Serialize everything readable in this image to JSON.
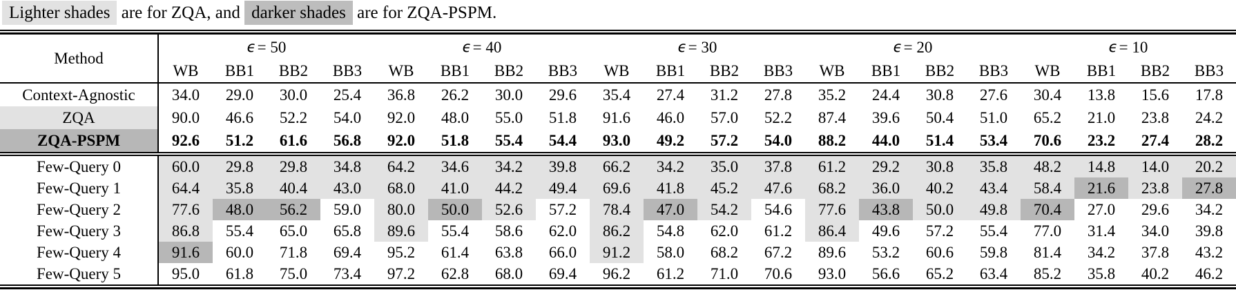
{
  "colors": {
    "light_shade": "#e2e2e2",
    "dark_shade": "#b7b7b7",
    "caption_light": "#e2e2e2",
    "caption_dark": "#bdbdbd"
  },
  "caption": {
    "highlight_light_text": "Lighter shades",
    "middle_text": " are for ZQA, and ",
    "highlight_dark_text": "darker shades",
    "end_text": " are for ZQA-PSPM."
  },
  "table": {
    "method_header": "Method",
    "groups": [
      {
        "symbol": "ϵ",
        "label": "= 50"
      },
      {
        "symbol": "ϵ",
        "label": "= 40"
      },
      {
        "symbol": "ϵ",
        "label": "= 30"
      },
      {
        "symbol": "ϵ",
        "label": "= 20"
      },
      {
        "symbol": "ϵ",
        "label": "= 10"
      }
    ],
    "subheader": [
      "WB",
      "BB1",
      "BB2",
      "BB3"
    ],
    "sections": [
      {
        "rows": [
          {
            "method": "Context-Agnostic",
            "method_shade": "N",
            "bold": false,
            "values": [
              "34.0",
              "29.0",
              "30.0",
              "25.4",
              "36.8",
              "26.2",
              "30.0",
              "29.6",
              "35.4",
              "27.4",
              "31.2",
              "27.8",
              "35.2",
              "24.4",
              "30.8",
              "27.6",
              "30.4",
              "13.8",
              "15.6",
              "17.8"
            ],
            "shades": [
              "N",
              "N",
              "N",
              "N",
              "N",
              "N",
              "N",
              "N",
              "N",
              "N",
              "N",
              "N",
              "N",
              "N",
              "N",
              "N",
              "N",
              "N",
              "N",
              "N"
            ]
          },
          {
            "method": "ZQA",
            "method_shade": "L",
            "bold": false,
            "values": [
              "90.0",
              "46.6",
              "52.2",
              "54.0",
              "92.0",
              "48.0",
              "55.0",
              "51.8",
              "91.6",
              "46.0",
              "57.0",
              "52.2",
              "87.4",
              "39.6",
              "50.4",
              "51.0",
              "65.2",
              "21.0",
              "23.8",
              "24.2"
            ],
            "shades": [
              "N",
              "N",
              "N",
              "N",
              "N",
              "N",
              "N",
              "N",
              "N",
              "N",
              "N",
              "N",
              "N",
              "N",
              "N",
              "N",
              "N",
              "N",
              "N",
              "N"
            ]
          },
          {
            "method": "ZQA-PSPM",
            "method_shade": "D",
            "bold": true,
            "values": [
              "92.6",
              "51.2",
              "61.6",
              "56.8",
              "92.0",
              "51.8",
              "55.4",
              "54.4",
              "93.0",
              "49.2",
              "57.2",
              "54.0",
              "88.2",
              "44.0",
              "51.4",
              "53.4",
              "70.6",
              "23.2",
              "27.4",
              "28.2"
            ],
            "shades": [
              "N",
              "N",
              "N",
              "N",
              "N",
              "N",
              "N",
              "N",
              "N",
              "N",
              "N",
              "N",
              "N",
              "N",
              "N",
              "N",
              "N",
              "N",
              "N",
              "N"
            ]
          }
        ]
      },
      {
        "rows": [
          {
            "method": "Few-Query 0",
            "method_shade": "N",
            "bold": false,
            "values": [
              "60.0",
              "29.8",
              "29.8",
              "34.8",
              "64.2",
              "34.6",
              "34.2",
              "39.8",
              "66.2",
              "34.2",
              "35.0",
              "37.8",
              "61.2",
              "29.2",
              "30.8",
              "35.8",
              "48.2",
              "14.8",
              "14.0",
              "20.2"
            ],
            "shades": [
              "L",
              "L",
              "L",
              "L",
              "L",
              "L",
              "L",
              "L",
              "L",
              "L",
              "L",
              "L",
              "L",
              "L",
              "L",
              "L",
              "L",
              "L",
              "L",
              "L"
            ]
          },
          {
            "method": "Few-Query 1",
            "method_shade": "N",
            "bold": false,
            "values": [
              "64.4",
              "35.8",
              "40.4",
              "43.0",
              "68.0",
              "41.0",
              "44.2",
              "49.4",
              "69.6",
              "41.8",
              "45.2",
              "47.6",
              "68.2",
              "36.0",
              "40.2",
              "43.4",
              "58.4",
              "21.6",
              "23.8",
              "27.8"
            ],
            "shades": [
              "L",
              "L",
              "L",
              "L",
              "L",
              "L",
              "L",
              "L",
              "L",
              "L",
              "L",
              "L",
              "L",
              "L",
              "L",
              "L",
              "L",
              "D",
              "L",
              "D"
            ]
          },
          {
            "method": "Few-Query 2",
            "method_shade": "N",
            "bold": false,
            "values": [
              "77.6",
              "48.0",
              "56.2",
              "59.0",
              "80.0",
              "50.0",
              "52.6",
              "57.2",
              "78.4",
              "47.0",
              "54.2",
              "54.6",
              "77.6",
              "43.8",
              "50.0",
              "49.8",
              "70.4",
              "27.0",
              "29.6",
              "34.2"
            ],
            "shades": [
              "L",
              "D",
              "D",
              "N",
              "L",
              "D",
              "L",
              "N",
              "L",
              "D",
              "L",
              "N",
              "L",
              "D",
              "L",
              "L",
              "D",
              "N",
              "N",
              "N"
            ]
          },
          {
            "method": "Few-Query 3",
            "method_shade": "N",
            "bold": false,
            "values": [
              "86.8",
              "55.4",
              "65.0",
              "65.8",
              "89.6",
              "55.4",
              "58.6",
              "62.0",
              "86.2",
              "54.8",
              "62.0",
              "61.2",
              "86.4",
              "49.6",
              "57.2",
              "55.4",
              "77.0",
              "31.4",
              "34.0",
              "39.8"
            ],
            "shades": [
              "L",
              "N",
              "N",
              "N",
              "L",
              "N",
              "N",
              "N",
              "L",
              "N",
              "N",
              "N",
              "L",
              "N",
              "N",
              "N",
              "N",
              "N",
              "N",
              "N"
            ]
          },
          {
            "method": "Few-Query 4",
            "method_shade": "N",
            "bold": false,
            "values": [
              "91.6",
              "60.0",
              "71.8",
              "69.4",
              "95.2",
              "61.4",
              "63.8",
              "66.0",
              "91.2",
              "58.0",
              "68.2",
              "67.2",
              "89.6",
              "53.2",
              "60.6",
              "59.8",
              "81.4",
              "34.2",
              "37.8",
              "43.2"
            ],
            "shades": [
              "D",
              "N",
              "N",
              "N",
              "N",
              "N",
              "N",
              "N",
              "L",
              "N",
              "N",
              "N",
              "N",
              "N",
              "N",
              "N",
              "N",
              "N",
              "N",
              "N"
            ]
          },
          {
            "method": "Few-Query 5",
            "method_shade": "N",
            "bold": false,
            "values": [
              "95.0",
              "61.8",
              "75.0",
              "73.4",
              "97.2",
              "62.8",
              "68.0",
              "69.4",
              "96.2",
              "61.2",
              "71.0",
              "70.6",
              "93.0",
              "56.6",
              "65.2",
              "63.4",
              "85.2",
              "35.8",
              "40.2",
              "46.2"
            ],
            "shades": [
              "N",
              "N",
              "N",
              "N",
              "N",
              "N",
              "N",
              "N",
              "N",
              "N",
              "N",
              "N",
              "N",
              "N",
              "N",
              "N",
              "N",
              "N",
              "N",
              "N"
            ]
          }
        ]
      }
    ]
  }
}
